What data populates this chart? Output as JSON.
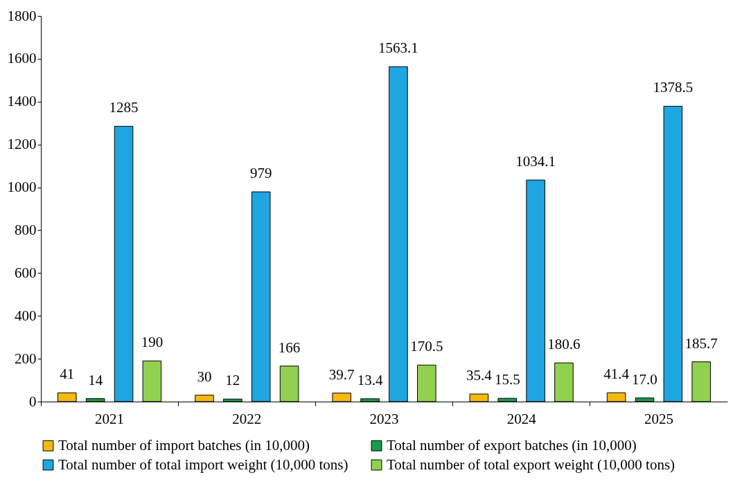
{
  "chart_data": {
    "type": "bar",
    "categories": [
      "2021",
      "2022",
      "2023",
      "2024",
      "2025"
    ],
    "series": [
      {
        "name": "Total number of import batches (in 10,000)",
        "color": "#f5b90f",
        "values": [
          41,
          30,
          39.7,
          35.4,
          41.4
        ],
        "value_labels": [
          "41",
          "30",
          "39.7",
          "35.4",
          "41.4"
        ]
      },
      {
        "name": "Total number of export batches (in 10,000)",
        "color": "#1a9a50",
        "values": [
          14,
          12,
          13.4,
          15.5,
          17.0
        ],
        "value_labels": [
          "14",
          "12",
          "13.4",
          "15.5",
          "17.0"
        ]
      },
      {
        "name": "Total number of total import weight (10,000 tons)",
        "color": "#1fa5df",
        "values": [
          1285,
          979,
          1563.1,
          1034.1,
          1378.5
        ],
        "value_labels": [
          "1285",
          "979",
          "1563.1",
          "1034.1",
          "1378.5"
        ]
      },
      {
        "name": "Total number of total export weight (10,000 tons)",
        "color": "#92d050",
        "values": [
          190,
          166,
          170.5,
          180.6,
          185.7
        ],
        "value_labels": [
          "190",
          "166",
          "170.5",
          "180.6",
          "185.7"
        ]
      }
    ],
    "ylim": [
      0,
      1800
    ],
    "yticks": [
      0,
      200,
      400,
      600,
      800,
      1000,
      1200,
      1400,
      1600,
      1800
    ],
    "grid": false,
    "legend": "bottom"
  }
}
